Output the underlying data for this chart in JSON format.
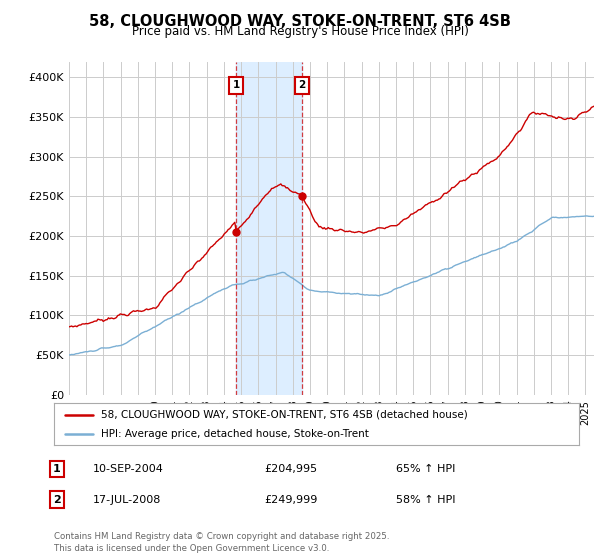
{
  "title": "58, CLOUGHWOOD WAY, STOKE-ON-TRENT, ST6 4SB",
  "subtitle": "Price paid vs. HM Land Registry's House Price Index (HPI)",
  "legend_line1": "58, CLOUGHWOOD WAY, STOKE-ON-TRENT, ST6 4SB (detached house)",
  "legend_line2": "HPI: Average price, detached house, Stoke-on-Trent",
  "purchase1_date": "10-SEP-2004",
  "purchase1_price": "£204,995",
  "purchase1_hpi": "65% ↑ HPI",
  "purchase2_date": "17-JUL-2008",
  "purchase2_price": "£249,999",
  "purchase2_hpi": "58% ↑ HPI",
  "footer": "Contains HM Land Registry data © Crown copyright and database right 2025.\nThis data is licensed under the Open Government Licence v3.0.",
  "ylim": [
    0,
    420000
  ],
  "yticks": [
    0,
    50000,
    100000,
    150000,
    200000,
    250000,
    300000,
    350000,
    400000
  ],
  "ytick_labels": [
    "£0",
    "£50K",
    "£100K",
    "£150K",
    "£200K",
    "£250K",
    "£300K",
    "£350K",
    "£400K"
  ],
  "red_line_color": "#cc0000",
  "blue_line_color": "#7bafd4",
  "purchase1_x": 2004.7,
  "purchase1_y": 204995,
  "purchase2_x": 2008.54,
  "purchase2_y": 249999,
  "vline1_x": 2004.7,
  "vline2_x": 2008.54,
  "background_color": "#ffffff",
  "grid_color": "#cccccc",
  "shading_color": "#ddeeff",
  "xlim_start": 1995.0,
  "xlim_end": 2025.5
}
